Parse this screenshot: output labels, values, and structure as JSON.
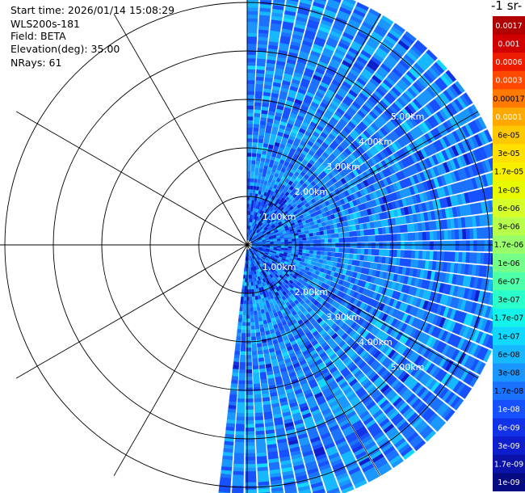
{
  "info": {
    "start_time": "Start time: 2026/01/14 15:08:29",
    "instrument": "WLS200s-181",
    "field": "Field: BETA",
    "elevation": "Elevation(deg): 35.00",
    "nrays": "NRays: 61"
  },
  "colorbar": {
    "title": "-1 sr-",
    "labels": [
      "0.0017",
      "0.001",
      "0.0006",
      "0.0003",
      "0.00017",
      "0.0001",
      "6e-05",
      "3e-05",
      "1.7e-05",
      "1e-05",
      "6e-06",
      "3e-06",
      "1.7e-06",
      "1e-06",
      "6e-07",
      "3e-07",
      "1.7e-07",
      "1e-07",
      "6e-08",
      "3e-08",
      "1.7e-08",
      "1e-08",
      "6e-09",
      "3e-09",
      "1.7e-09",
      "1e-09"
    ],
    "colors": [
      "#b00000",
      "#d00000",
      "#ee1c00",
      "#ff4800",
      "#ff7a00",
      "#ffa800",
      "#ffc800",
      "#ffe000",
      "#f6f000",
      "#e8fa00",
      "#d6ff2a",
      "#b8ff4c",
      "#98ff6a",
      "#76ff88",
      "#4effaa",
      "#2affcc",
      "#14f2ea",
      "#12d8ff",
      "#16b8ff",
      "#1a96ff",
      "#1a72ff",
      "#1650ff",
      "#1232e8",
      "#0e1ecc",
      "#0a12a8",
      "#060a80"
    ],
    "label_colors": [
      "#ffffff",
      "#ffffff",
      "#ffffff",
      "#ffffff",
      "#000000",
      "#ffffff",
      "#000000",
      "#000000",
      "#000000",
      "#000000",
      "#000000",
      "#000000",
      "#000000",
      "#000000",
      "#000000",
      "#000000",
      "#000000",
      "#000000",
      "#000000",
      "#000000",
      "#000000",
      "#ffffff",
      "#ffffff",
      "#ffffff",
      "#ffffff",
      "#ffffff"
    ]
  },
  "chart_data": {
    "type": "heatmap",
    "field": "BETA",
    "elevation_deg": 35.0,
    "nrays": 61,
    "azimuth_start_deg": 0,
    "azimuth_end_deg": 187,
    "range_rings_km": [
      1,
      2,
      3,
      4,
      5
    ],
    "ring_labels_east": [
      "1.00km",
      "2.00km",
      "3.00km",
      "4.00km",
      "5.00km"
    ],
    "ring_labels_south": [
      "1.00km",
      "2.00km",
      "3.00km",
      "4.00km",
      "5.00km"
    ],
    "max_range_km": 5.5,
    "colorbar_range": [
      1e-09,
      0.0017
    ],
    "colorbar_log": true,
    "typical_value": 2.5e-08,
    "grid": true
  }
}
